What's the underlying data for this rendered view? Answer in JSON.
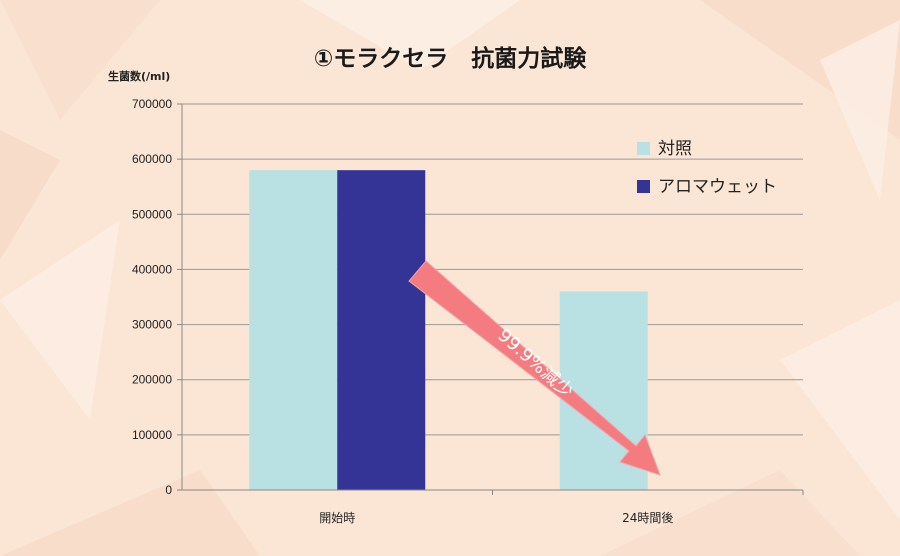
{
  "colors": {
    "background": "#fbe6d6",
    "control": "#b9e0e3",
    "product": "#343396",
    "arrow": "#f47c80",
    "grid": "#999999"
  },
  "chart_data": {
    "type": "bar",
    "title": "①モラクセラ　抗菌力試験",
    "ylabel": "生菌数(/ml)",
    "xlabel": "",
    "categories": [
      "開始時",
      "24時間後"
    ],
    "series": [
      {
        "name": "対照",
        "values": [
          580000,
          360000
        ]
      },
      {
        "name": "アロマウェット",
        "values": [
          580000,
          0
        ]
      }
    ],
    "ylim": [
      0,
      700000
    ],
    "yticks": [
      0,
      100000,
      200000,
      300000,
      400000,
      500000,
      600000,
      700000
    ],
    "grid": true,
    "legend_position": "top-right",
    "annotation": {
      "text": "99.9%減少",
      "shape": "arrow"
    }
  }
}
